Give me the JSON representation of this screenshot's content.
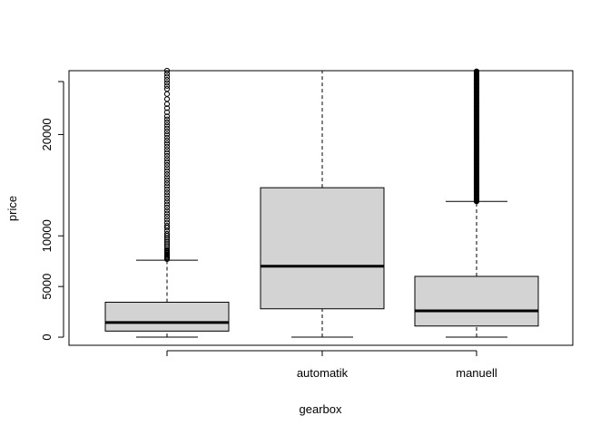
{
  "chart_data": {
    "type": "boxplot",
    "xlabel": "gearbox",
    "ylabel": "price",
    "title": "",
    "categories": [
      "",
      "automatik",
      "manuell"
    ],
    "y_ticks": [
      0,
      5000,
      10000,
      20000
    ],
    "ylim": [
      -800,
      26300
    ],
    "grid": false,
    "boxes": [
      {
        "category": "",
        "whisker_low": 0,
        "q1": 600,
        "median": 1450,
        "q3": 3450,
        "whisker_high": 7600,
        "outliers": [
          7700,
          7800,
          7900,
          8000,
          8100,
          8200,
          8300,
          8400,
          8500,
          8600,
          8800,
          9000,
          9200,
          9400,
          9600,
          9800,
          10000,
          10200,
          10500,
          10800,
          11000,
          11300,
          11600,
          11900,
          12200,
          12500,
          12800,
          13100,
          13400,
          13700,
          14000,
          14300,
          14600,
          14900,
          15200,
          15500,
          15800,
          16100,
          16400,
          16700,
          17000,
          17300,
          17600,
          17900,
          18200,
          18500,
          18800,
          19100,
          19400,
          19700,
          20000,
          20300,
          20600,
          20900,
          21200,
          21500,
          21800,
          22200,
          22600,
          23000,
          23500,
          24000,
          24500,
          24800,
          25100,
          25400,
          25700,
          26000,
          26300
        ]
      },
      {
        "category": "automatik",
        "whisker_low": 0,
        "q1": 2800,
        "median": 7000,
        "q3": 14750,
        "whisker_high": 26300,
        "outliers": []
      },
      {
        "category": "manuell",
        "whisker_low": 0,
        "q1": 1100,
        "median": 2600,
        "q3": 6000,
        "whisker_high": 13400,
        "outliers_dense_range": [
          13400,
          26300
        ]
      }
    ],
    "box_fill": "#d3d3d3"
  }
}
